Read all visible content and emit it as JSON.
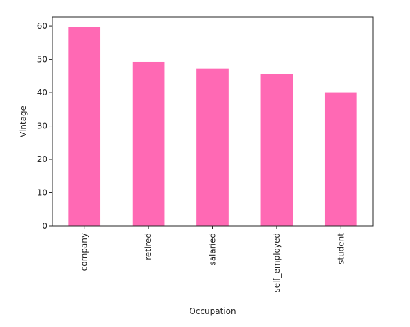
{
  "chart_data": {
    "type": "bar",
    "title": "",
    "xlabel": "Occupation",
    "ylabel": "Vintage",
    "categories": [
      "company",
      "retired",
      "salaried",
      "self_employed",
      "student"
    ],
    "values": [
      59.7,
      49.3,
      47.3,
      45.6,
      40.1
    ],
    "ylim": [
      0,
      62.7
    ],
    "yticks": [
      0,
      10,
      20,
      30,
      40,
      50,
      60
    ],
    "grid": false,
    "legend": "none",
    "bar_color": "#ff69b4"
  }
}
